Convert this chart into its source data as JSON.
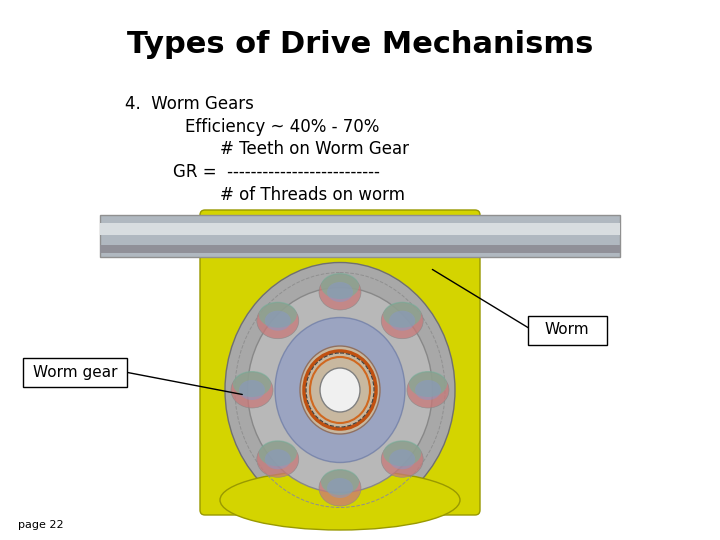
{
  "title": "Types of Drive Mechanisms",
  "title_fontsize": 22,
  "title_fontweight": "bold",
  "line1": "4.  Worm Gears",
  "line2": "Efficiency ~ 40% - 70%",
  "line3": "# Teeth on Worm Gear",
  "line4": "GR =  --------------------------",
  "line5": "# of Threads on worm",
  "text_fontsize": 12,
  "label_worm": "Worm",
  "label_worm_gear": "Worm gear",
  "page_label": "page 22",
  "bg_color": "#ffffff",
  "yellow_bg": "#d4d400",
  "shaft_color": "#b0b8c0",
  "shaft_hi": "#d8dde0",
  "gear_outer": "#a8a8a8",
  "gear_mid": "#b8b8b8",
  "blue_ring": "#8898c8",
  "lobe_pink": "#c87878",
  "lobe_green": "#78b098",
  "lobe_blue": "#8898c8",
  "hub_color": "#c8b8a0",
  "coil_color": "#c05010",
  "bore_color": "#f0f0f0"
}
